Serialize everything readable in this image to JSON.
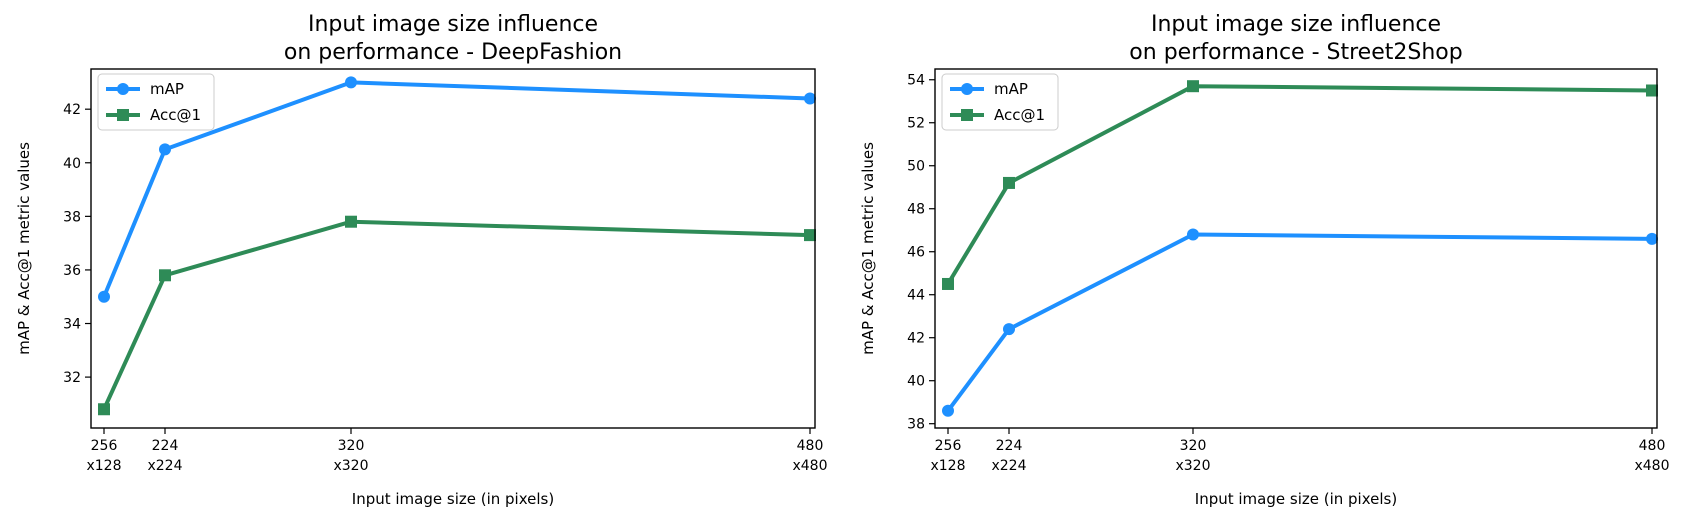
{
  "chart_data": [
    {
      "type": "line",
      "title_lines": [
        "Input image size influence",
        "on performance - DeepFashion"
      ],
      "xlabel": "Input image size (in pixels)",
      "ylabel": "mAP & Acc@1 metric values",
      "x": [
        0,
        1,
        2,
        3
      ],
      "categories": [
        "256\nx128",
        "224\nx224",
        "320\nx320",
        "480\nx480"
      ],
      "yticks": [
        32,
        34,
        36,
        38,
        40,
        42
      ],
      "ylim": [
        30.1,
        43.5
      ],
      "legend": "top-left",
      "grid": false,
      "series": [
        {
          "name": "mAP",
          "color": "#1e90ff",
          "marker": "circle",
          "values": [
            35.0,
            40.5,
            43.0,
            42.4
          ]
        },
        {
          "name": "Acc@1",
          "color": "#2e8b57",
          "marker": "square",
          "values": [
            30.8,
            35.8,
            37.8,
            37.3
          ]
        }
      ]
    },
    {
      "type": "line",
      "title_lines": [
        "Input image size influence",
        "on performance - Street2Shop"
      ],
      "xlabel": "Input image size (in pixels)",
      "ylabel": "mAP & Acc@1 metric values",
      "x": [
        0,
        1,
        2,
        3
      ],
      "categories": [
        "256\nx128",
        "224\nx224",
        "320\nx320",
        "480\nx480"
      ],
      "yticks": [
        38,
        40,
        42,
        44,
        46,
        48,
        50,
        52,
        54
      ],
      "ylim": [
        37.8,
        54.5
      ],
      "legend": "top-left",
      "grid": false,
      "series": [
        {
          "name": "mAP",
          "color": "#1e90ff",
          "marker": "circle",
          "values": [
            38.6,
            42.4,
            46.8,
            46.6
          ]
        },
        {
          "name": "Acc@1",
          "color": "#2e8b57",
          "marker": "square",
          "values": [
            44.5,
            49.2,
            53.7,
            53.5
          ]
        }
      ]
    }
  ]
}
